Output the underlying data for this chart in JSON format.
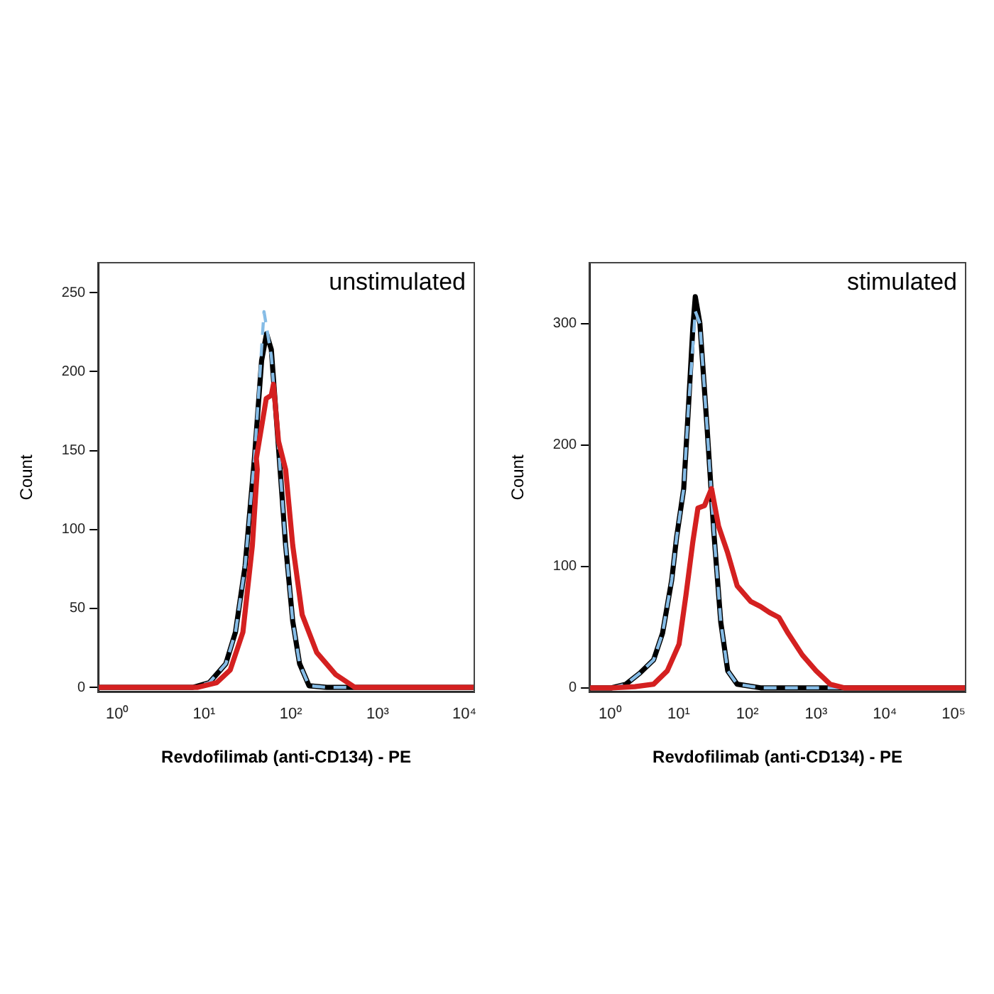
{
  "chart_data": [
    {
      "type": "line",
      "xlabel": "Revdofilimab (anti-CD134) - PE",
      "ylabel": "Count",
      "annotations": [
        "unstimulated"
      ],
      "log": "x",
      "grid": false,
      "legend": false,
      "xlim": [
        0.6,
        13000
      ],
      "xticks": [
        {
          "value": 1,
          "label": "10⁰"
        },
        {
          "value": 10,
          "label": "10¹"
        },
        {
          "value": 100,
          "label": "10²"
        },
        {
          "value": 1000,
          "label": "10³"
        },
        {
          "value": 10000,
          "label": "10⁴"
        }
      ],
      "ylim": [
        -3,
        269
      ],
      "yticks": [
        0,
        50,
        100,
        150,
        200,
        250
      ],
      "series": [
        {
          "color": "#000000",
          "line_style": "solid",
          "x": [
            0.6,
            7.4,
            11.5,
            17.8,
            23,
            29.7,
            38,
            46,
            52.4,
            59.5,
            72,
            87,
            105,
            126,
            162,
            260,
            13000
          ],
          "values": [
            0,
            0,
            3,
            15,
            35,
            77,
            145,
            207,
            224,
            214,
            152,
            90,
            42,
            15,
            1,
            0,
            0
          ]
        },
        {
          "color": "#86bce6",
          "line_style": "dashed",
          "x": [
            0.6,
            7.4,
            11.5,
            17.8,
            23,
            29.7,
            38,
            49,
            59.5,
            72,
            87,
            105,
            126,
            162,
            260,
            13000
          ],
          "values": [
            0,
            0,
            3,
            15,
            35,
            77,
            145,
            238,
            210,
            152,
            90,
            42,
            15,
            1,
            0,
            0
          ]
        },
        {
          "color": "#d42020",
          "line_style": "solid",
          "x": [
            0.6,
            8.3,
            14,
            20,
            28,
            36,
            41,
            40,
            52,
            59.5,
            63,
            72,
            87,
            105,
            135,
            199,
            330,
            548,
            13000
          ],
          "values": [
            0,
            0,
            3,
            11,
            35,
            90,
            138,
            145,
            183,
            185,
            192,
            156,
            138,
            90,
            46,
            22,
            8,
            0,
            0
          ]
        }
      ]
    },
    {
      "type": "line",
      "xlabel": "Revdofilimab (anti-CD134) - PE",
      "ylabel": "Count",
      "annotations": [
        "stimulated"
      ],
      "log": "x",
      "grid": false,
      "legend": false,
      "xlim": [
        0.5,
        150000
      ],
      "xticks": [
        {
          "value": 1,
          "label": "10⁰"
        },
        {
          "value": 10,
          "label": "10¹"
        },
        {
          "value": 100,
          "label": "10²"
        },
        {
          "value": 1000,
          "label": "10³"
        },
        {
          "value": 10000,
          "label": "10⁴"
        },
        {
          "value": 100000,
          "label": "10⁵"
        }
      ],
      "ylim": [
        -3.5,
        350
      ],
      "yticks": [
        0,
        100,
        200,
        300
      ],
      "series": [
        {
          "color": "#000000",
          "line_style": "solid",
          "x": [
            0.5,
            1.05,
            1.7,
            2.7,
            4.3,
            5.8,
            7.9,
            9.3,
            11.8,
            13.8,
            16,
            17.4,
            20.3,
            25.7,
            32.4,
            40.9,
            51.6,
            70.8,
            155,
            150000
          ],
          "values": [
            0,
            0,
            3,
            12,
            23,
            45,
            89,
            124,
            164,
            230,
            296,
            322,
            300,
            216,
            128,
            54,
            14,
            3,
            0,
            0
          ]
        },
        {
          "color": "#86bce6",
          "line_style": "dashed",
          "x": [
            0.5,
            1.05,
            1.7,
            2.7,
            4.3,
            5.8,
            7.9,
            9.3,
            11.8,
            13.8,
            17.4,
            20.3,
            25.7,
            32.4,
            40.9,
            51.6,
            70.8,
            155,
            150000
          ],
          "values": [
            0,
            0,
            3,
            12,
            23,
            45,
            89,
            124,
            164,
            230,
            310,
            300,
            216,
            128,
            54,
            14,
            3,
            0,
            0
          ]
        },
        {
          "color": "#d42020",
          "line_style": "solid",
          "x": [
            0.5,
            1.05,
            2.3,
            4.3,
            6.8,
            10.1,
            12.7,
            16,
            19,
            23.7,
            30,
            38,
            51.6,
            70.8,
            112,
            155,
            210,
            287,
            390,
            630,
            1000,
            1600,
            2560,
            150000
          ],
          "values": [
            0,
            0,
            1,
            3,
            14,
            36,
            76,
            120,
            148,
            150,
            164,
            133,
            111,
            84,
            71,
            67,
            62,
            58,
            45,
            27,
            14,
            3,
            0,
            0
          ]
        }
      ]
    }
  ]
}
